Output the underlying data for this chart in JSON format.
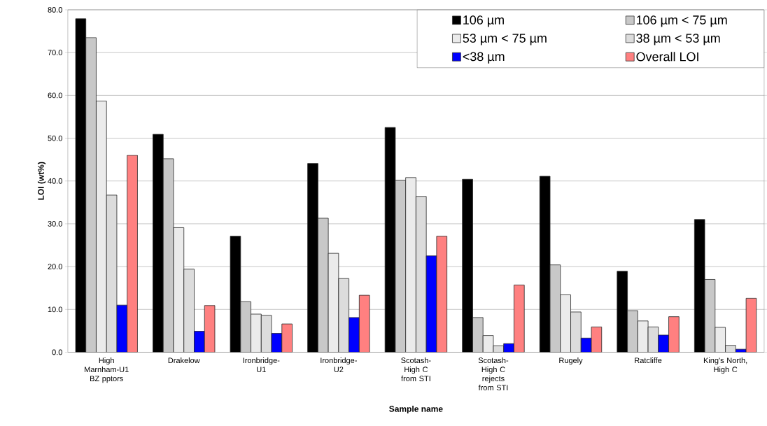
{
  "chart_data": {
    "type": "bar",
    "xlabel": "Sample name",
    "ylabel": "LOI (wt%)",
    "categories": [
      "High Marnham-U1 BZ pptors",
      "Drakelow",
      "Ironbridge-U1",
      "Ironbridge-U2",
      "Scotash-High C from STI",
      "Scotash-High C rejects from STI",
      "Rugely",
      "Ratcliffe",
      "King's North, High C"
    ],
    "series": [
      {
        "name": "106 µm",
        "color": "#000000",
        "values": [
          77.9,
          50.9,
          27.1,
          44.1,
          52.5,
          40.4,
          41.1,
          18.9,
          31.0
        ]
      },
      {
        "name": "106 µm < 75 µm",
        "color": "#c8c8c8",
        "values": [
          73.5,
          45.2,
          11.8,
          31.3,
          40.2,
          8.1,
          20.4,
          9.7,
          17.0
        ]
      },
      {
        "name": "53 µm < 75 µm",
        "color": "#ebebeb",
        "values": [
          58.7,
          29.1,
          8.9,
          23.1,
          40.8,
          3.9,
          13.4,
          7.3,
          5.8
        ]
      },
      {
        "name": "38 µm < 53 µm",
        "color": "#dcdcdc",
        "values": [
          36.7,
          19.4,
          8.6,
          17.2,
          36.4,
          1.5,
          9.4,
          5.9,
          1.6
        ]
      },
      {
        "name": "<38 µm",
        "color": "#0000ff",
        "values": [
          11.0,
          4.9,
          4.4,
          8.1,
          22.5,
          2.0,
          3.3,
          4.0,
          0.7
        ]
      },
      {
        "name": "Overall LOI",
        "color": "#ff8080",
        "values": [
          46.0,
          10.9,
          6.6,
          13.3,
          27.1,
          15.7,
          5.9,
          8.3,
          12.6
        ]
      }
    ],
    "ylim": [
      0,
      80
    ],
    "yticks": [
      {
        "value": 0,
        "label": "0.0"
      },
      {
        "value": 10,
        "label": "10.0"
      },
      {
        "value": 20,
        "label": "20.0"
      },
      {
        "value": 30,
        "label": "30.0"
      },
      {
        "value": 40,
        "label": "40.0"
      },
      {
        "value": 50,
        "label": "50.0"
      },
      {
        "value": 60,
        "label": "60.0"
      },
      {
        "value": 70,
        "label": "70.0"
      },
      {
        "value": 80,
        "label": "80.0"
      }
    ],
    "grid": "y",
    "legend": "top right"
  }
}
